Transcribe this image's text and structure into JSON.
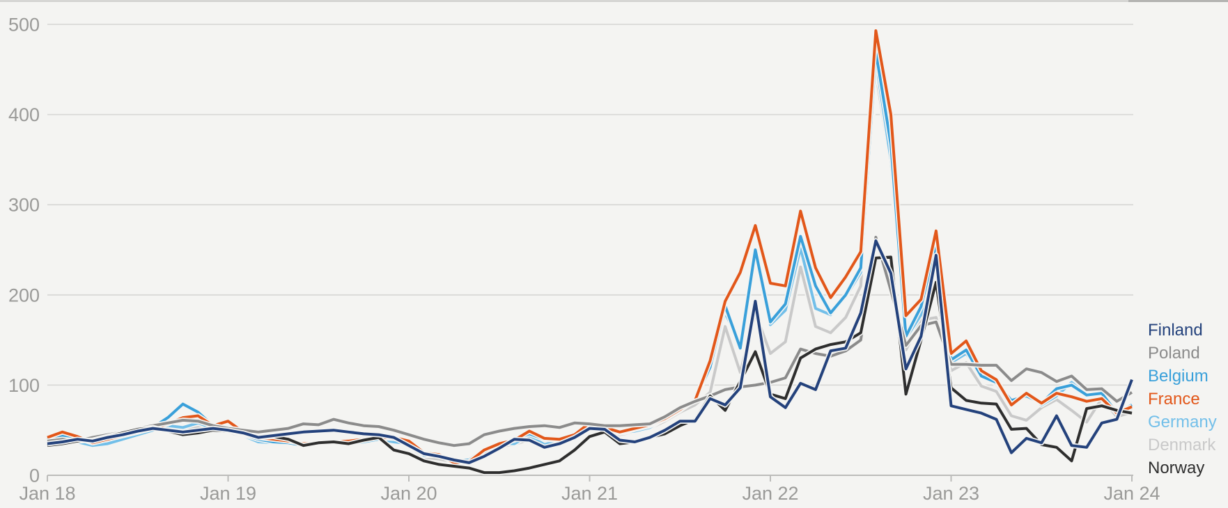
{
  "colors": {
    "background": "#f4f4f2",
    "gridline": "#d9d9d7",
    "axis": "#bcbcba",
    "top_border": "#c8c8c6",
    "axis_label": "#9a9a98"
  },
  "chart_data": {
    "type": "line",
    "x_axis": {
      "tick_labels": [
        "Jan 18",
        "Jan 19",
        "Jan 20",
        "Jan 21",
        "Jan 22",
        "Jan 23",
        "Jan 24"
      ],
      "start_month": "2018-01",
      "end_month": "2024-01",
      "points_per_series": 73
    },
    "y_axis": {
      "ticks": [
        0,
        100,
        200,
        300,
        400,
        500
      ],
      "range": [
        0,
        500
      ]
    },
    "grid": "horizontal",
    "legend_position": "right",
    "series": [
      {
        "name": "Finland",
        "color": "#24427c",
        "values": [
          35,
          37,
          40,
          38,
          42,
          45,
          49,
          52,
          50,
          48,
          50,
          52,
          50,
          47,
          42,
          44,
          46,
          48,
          49,
          50,
          48,
          46,
          45,
          42,
          33,
          24,
          21,
          17,
          14,
          21,
          30,
          40,
          39,
          31,
          35,
          42,
          52,
          51,
          39,
          37,
          42,
          50,
          60,
          60,
          85,
          78,
          97,
          193,
          87,
          75,
          102,
          95,
          138,
          141,
          180,
          260,
          224,
          118,
          154,
          244,
          77,
          73,
          69,
          62,
          25,
          41,
          36,
          66,
          33,
          31,
          58,
          62,
          106
        ]
      },
      {
        "name": "Poland",
        "color": "#8b8b8b",
        "values": [
          38,
          40,
          38,
          42,
          45,
          48,
          52,
          55,
          58,
          61,
          60,
          55,
          52,
          50,
          48,
          50,
          52,
          57,
          56,
          62,
          58,
          55,
          54,
          50,
          45,
          40,
          36,
          33,
          35,
          45,
          49,
          52,
          54,
          55,
          53,
          58,
          57,
          55,
          55,
          56,
          57,
          65,
          75,
          82,
          88,
          95,
          98,
          100,
          103,
          108,
          140,
          135,
          132,
          138,
          150,
          264,
          205,
          144,
          166,
          170,
          123,
          123,
          122,
          122,
          105,
          118,
          114,
          104,
          110,
          95,
          96,
          82,
          92
        ]
      },
      {
        "name": "Belgium",
        "color": "#39a0da",
        "values": [
          40,
          44,
          41,
          36,
          40,
          44,
          48,
          53,
          64,
          79,
          70,
          55,
          52,
          45,
          40,
          37,
          36,
          33,
          35,
          36,
          37,
          39,
          42,
          41,
          37,
          24,
          22,
          15,
          17,
          29,
          36,
          40,
          46,
          40,
          39,
          44,
          55,
          52,
          47,
          51,
          55,
          62,
          72,
          84,
          120,
          188,
          141,
          250,
          170,
          190,
          265,
          210,
          180,
          200,
          230,
          470,
          367,
          154,
          187,
          257,
          128,
          139,
          110,
          103,
          83,
          88,
          80,
          96,
          100,
          89,
          91,
          69,
          78
        ]
      },
      {
        "name": "France",
        "color": "#e2571a",
        "values": [
          42,
          48,
          43,
          36,
          40,
          44,
          48,
          52,
          57,
          64,
          66,
          55,
          60,
          48,
          42,
          40,
          38,
          35,
          36,
          37,
          38,
          40,
          42,
          42,
          38,
          25,
          23,
          14,
          15,
          28,
          35,
          39,
          49,
          41,
          40,
          45,
          58,
          53,
          48,
          52,
          56,
          63,
          73,
          83,
          127,
          193,
          225,
          277,
          213,
          210,
          293,
          230,
          197,
          220,
          248,
          493,
          400,
          177,
          195,
          271,
          135,
          149,
          116,
          106,
          78,
          91,
          80,
          91,
          87,
          82,
          85,
          69,
          76
        ]
      },
      {
        "name": "Germany",
        "color": "#72bfe9",
        "values": [
          36,
          38,
          37,
          33,
          35,
          40,
          45,
          50,
          55,
          53,
          58,
          52,
          50,
          44,
          37,
          36,
          36,
          32,
          36,
          36,
          35,
          37,
          40,
          37,
          35,
          22,
          22,
          17,
          17,
          26,
          35,
          35,
          44,
          34,
          39,
          44,
          52,
          49,
          47,
          49,
          53,
          63,
          73,
          83,
          128,
          180,
          146,
          245,
          167,
          183,
          252,
          185,
          178,
          198,
          225,
          460,
          350,
          152,
          178,
          251,
          125,
          135,
          113,
          101,
          80,
          90,
          78,
          88,
          103,
          89,
          93,
          70,
          74
        ]
      },
      {
        "name": "Denmark",
        "color": "#c9c9c9",
        "values": [
          38,
          41,
          39,
          36,
          41,
          46,
          50,
          54,
          53,
          50,
          53,
          49,
          48,
          43,
          38,
          39,
          38,
          33,
          36,
          37,
          35,
          38,
          41,
          38,
          33,
          20,
          18,
          15,
          16,
          25,
          32,
          34,
          40,
          32,
          35,
          42,
          51,
          49,
          45,
          48,
          52,
          60,
          70,
          78,
          92,
          165,
          114,
          180,
          135,
          148,
          231,
          165,
          158,
          175,
          210,
          446,
          344,
          139,
          172,
          175,
          116,
          125,
          99,
          93,
          66,
          61,
          75,
          84,
          72,
          59,
          85,
          65,
          70
        ]
      },
      {
        "name": "Norway",
        "color": "#2e2e2e",
        "values": [
          33,
          35,
          38,
          39,
          43,
          47,
          51,
          53,
          49,
          45,
          47,
          50,
          49,
          46,
          42,
          43,
          40,
          33,
          36,
          37,
          35,
          39,
          42,
          28,
          24,
          16,
          12,
          10,
          8,
          3,
          3,
          5,
          8,
          12,
          16,
          28,
          43,
          48,
          35,
          37,
          42,
          46,
          55,
          62,
          88,
          72,
          104,
          137,
          90,
          85,
          130,
          140,
          145,
          148,
          158,
          241,
          242,
          90,
          150,
          214,
          97,
          83,
          80,
          79,
          51,
          52,
          34,
          31,
          16,
          74,
          77,
          72,
          69
        ]
      }
    ]
  }
}
